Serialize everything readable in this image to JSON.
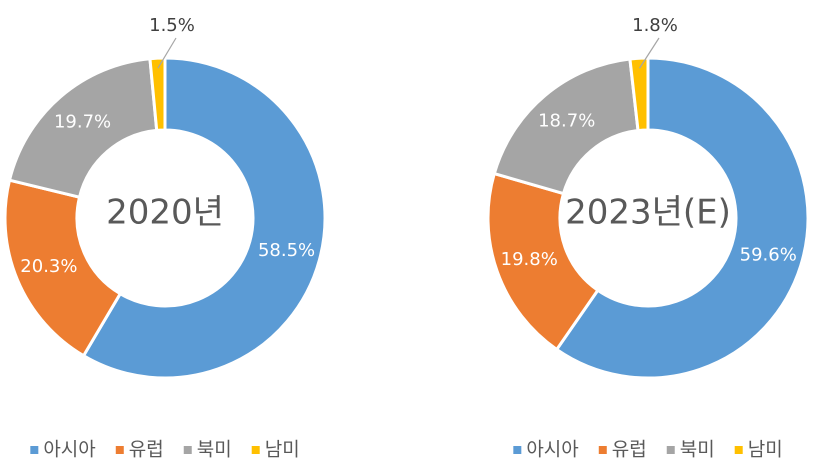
{
  "chart_data": [
    {
      "type": "donut",
      "title": "2020년",
      "categories": [
        "아시아",
        "유럽",
        "북미",
        "남미"
      ],
      "colors": [
        "#5b9bd5",
        "#ed7d31",
        "#a5a5a5",
        "#ffc000"
      ],
      "values": [
        58.5,
        20.3,
        19.7,
        1.5
      ],
      "value_labels": [
        "58.5%",
        "20.3%",
        "19.7%",
        "1.5%"
      ]
    },
    {
      "type": "donut",
      "title": "2023년(E)",
      "categories": [
        "아시아",
        "유럽",
        "북미",
        "남미"
      ],
      "colors": [
        "#5b9bd5",
        "#ed7d31",
        "#a5a5a5",
        "#ffc000"
      ],
      "values": [
        59.6,
        19.8,
        18.7,
        1.8
      ],
      "value_labels": [
        "59.6%",
        "19.8%",
        "18.7%",
        "1.8%"
      ]
    }
  ]
}
